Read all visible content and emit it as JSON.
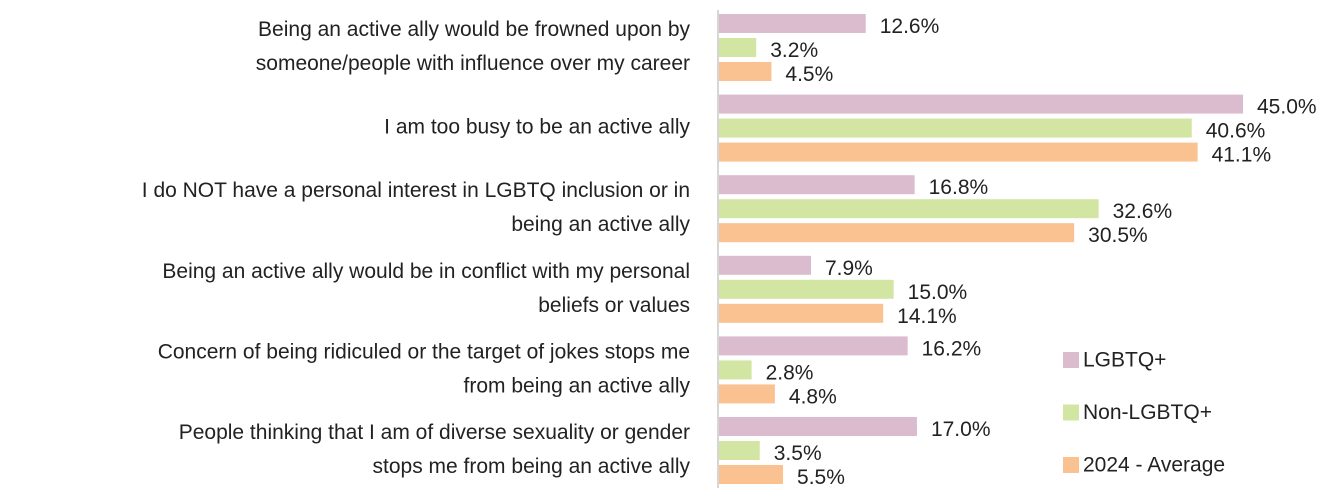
{
  "chart_data": {
    "type": "bar",
    "orientation": "horizontal",
    "categories": [
      [
        "Being an active ally would be frowned upon by",
        "someone/people with influence over my career"
      ],
      [
        "I am too busy to be an active ally"
      ],
      [
        "I do NOT have a personal interest in LGBTQ inclusion or in",
        "being an active ally"
      ],
      [
        "Being an active ally would be in conflict with my personal",
        "beliefs or values"
      ],
      [
        "Concern of being ridiculed or the target of jokes stops me",
        "from being an active ally"
      ],
      [
        "People thinking that I am of diverse sexuality or gender",
        "stops me from being an active ally"
      ]
    ],
    "series": [
      {
        "name": "LGBTQ+",
        "color": "#dbbccf",
        "values": [
          12.6,
          45.0,
          16.8,
          7.9,
          16.2,
          17.0
        ],
        "value_labels": [
          "12.6%",
          "45.0%",
          "16.8%",
          "7.9%",
          "16.2%",
          "17.0%"
        ]
      },
      {
        "name": "Non-LGBTQ+",
        "color": "#d3e5a3",
        "values": [
          3.2,
          40.6,
          32.6,
          15.0,
          2.8,
          3.5
        ],
        "value_labels": [
          "3.2%",
          "40.6%",
          "32.6%",
          "15.0%",
          "2.8%",
          "3.5%"
        ]
      },
      {
        "name": "2024 - Average",
        "color": "#fac191",
        "values": [
          4.5,
          41.1,
          30.5,
          14.1,
          4.8,
          5.5
        ],
        "value_labels": [
          "4.5%",
          "41.1%",
          "30.5%",
          "14.1%",
          "4.8%",
          "5.5%"
        ]
      }
    ],
    "legend": "lower right"
  }
}
